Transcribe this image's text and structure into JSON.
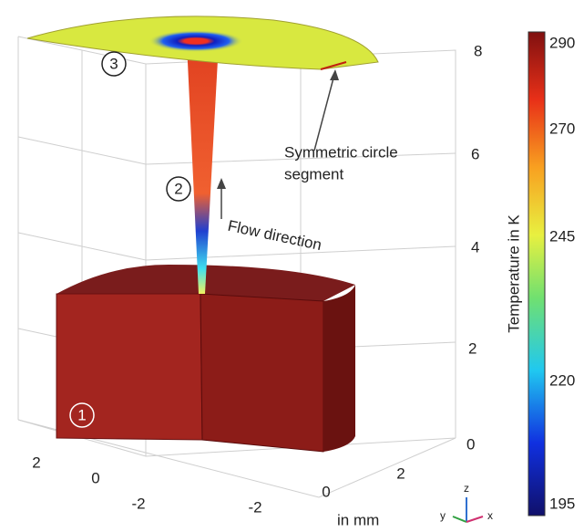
{
  "regions": [
    "1",
    "2",
    "3"
  ],
  "annotations": {
    "segment": [
      "Symmetric circle",
      "segment"
    ],
    "flow": "Flow direction"
  },
  "axes": {
    "z_ticks": [
      8,
      6,
      4,
      2,
      0
    ],
    "y_ticks": [
      2,
      0,
      -2
    ],
    "x_ticks": [
      2,
      0,
      -2
    ],
    "unit": "in mm",
    "triad": [
      "z",
      "y",
      "x"
    ]
  },
  "colorbar": {
    "title": "Temperature in K",
    "ticks": [
      290,
      270,
      245,
      220,
      195
    ]
  }
}
